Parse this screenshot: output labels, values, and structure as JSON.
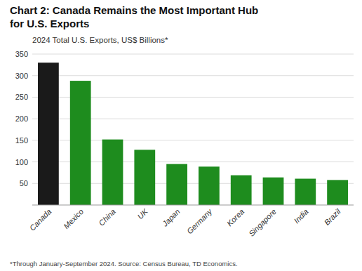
{
  "chart_data": {
    "type": "bar",
    "title": "Chart 2: Canada Remains the Most Important Hub\nfor U.S. Exports",
    "subtitle": "2024 Total U.S. Exports, US$ Billions*",
    "footnote": "*Through January-September 2024.  Source: Census Bureau, TD Economics.",
    "categories": [
      "Canada",
      "Mexico",
      "China",
      "UK",
      "Japan",
      "Germany",
      "Korea",
      "Singapore",
      "India",
      "Brazil"
    ],
    "values": [
      330,
      288,
      152,
      128,
      95,
      89,
      69,
      64,
      61,
      58
    ],
    "colors": [
      "#1a1a1a",
      "#1e8c1e",
      "#1e8c1e",
      "#1e8c1e",
      "#1e8c1e",
      "#1e8c1e",
      "#1e8c1e",
      "#1e8c1e",
      "#1e8c1e",
      "#1e8c1e"
    ],
    "ylim": [
      0,
      350
    ],
    "yticks": [
      50,
      100,
      150,
      200,
      250,
      300,
      350
    ],
    "grid": true
  }
}
